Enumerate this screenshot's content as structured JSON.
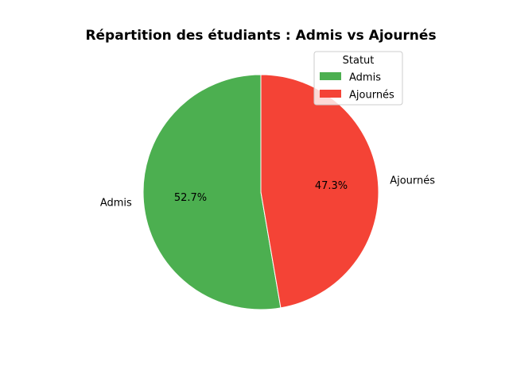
{
  "chart_data": {
    "type": "pie",
    "title": "Répartition des étudiants : Admis vs Ajournés",
    "categories": [
      "Admis",
      "Ajournés"
    ],
    "values": [
      52.7,
      47.3
    ],
    "percent_labels": [
      "52.7%",
      "47.3%"
    ],
    "colors": [
      "#4caf50",
      "#f44336"
    ],
    "start_angle_deg": 90,
    "direction": "counterclockwise",
    "legend": {
      "title": "Statut",
      "entries": [
        "Admis",
        "Ajournés"
      ],
      "placement": "upper-right"
    }
  }
}
